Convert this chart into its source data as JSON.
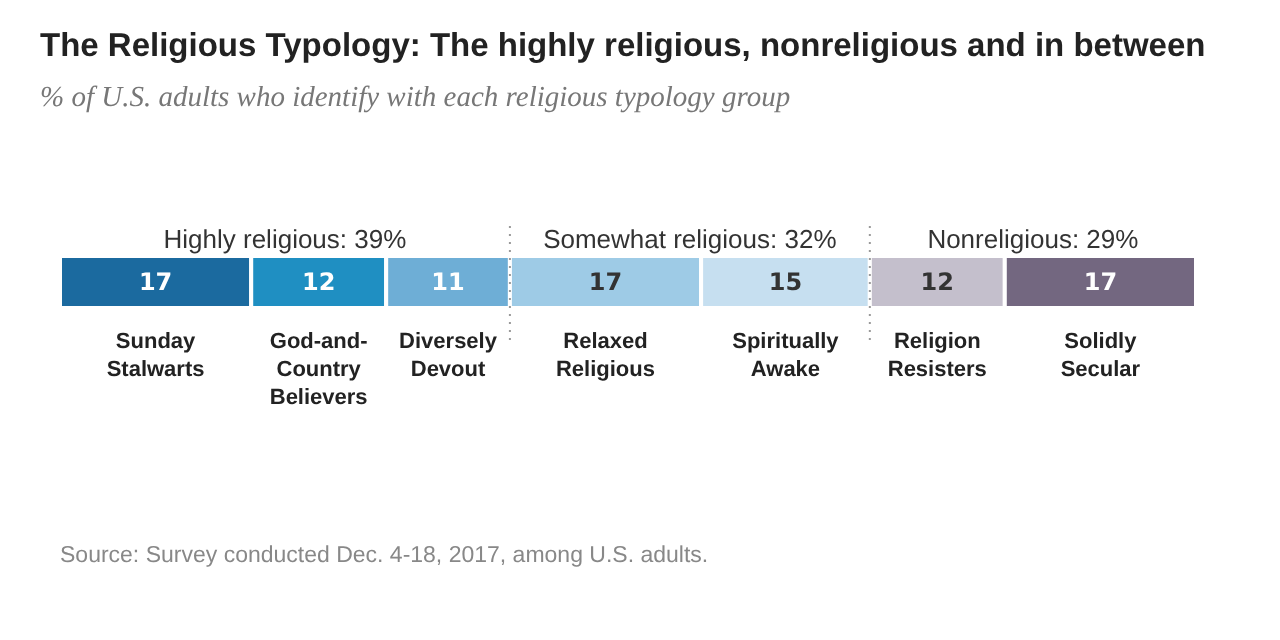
{
  "chart_data": {
    "type": "bar",
    "orientation": "horizontal",
    "stacked": true,
    "title": "The Religious Typology: The highly religious, nonreligious and in between",
    "subtitle": "% of U.S. adults who identify with each religious typology group",
    "categories": [
      null
    ],
    "series": [
      {
        "name": "Sunday Stalwarts",
        "color": "#1b6a9f",
        "values": [
          17
        ]
      },
      {
        "name": "God-and-Country Believers",
        "color": "#1f8fc2",
        "values": [
          12
        ]
      },
      {
        "name": "Diversely Devout",
        "color": "#6eaed6",
        "values": [
          11
        ]
      },
      {
        "name": "Relaxed Religious",
        "color": "#9ecbe6",
        "values": [
          17
        ]
      },
      {
        "name": "Spiritually Awake",
        "color": "#c6dff0",
        "values": [
          15
        ]
      },
      {
        "name": "Religion Resisters",
        "color": "#c4bfcc",
        "values": [
          12
        ]
      },
      {
        "name": "Solidly Secular",
        "color": "#736780",
        "values": [
          17
        ]
      }
    ],
    "xlim": [
      0,
      101
    ],
    "tick_labels": false,
    "data_labels": true,
    "legend": false,
    "ref_lines": [
      {
        "axis": "x",
        "value": 40,
        "line_style": "dotted",
        "color": "#999999"
      },
      {
        "axis": "x",
        "value": 72,
        "line_style": "dotted",
        "color": "#999999"
      }
    ],
    "annotations": [
      "Highly religious: 39%",
      "Somewhat religious: 32%",
      "Nonreligious: 29%",
      "Source: Survey conducted Dec. 4-18, 2017, among U.S. adults."
    ]
  }
}
